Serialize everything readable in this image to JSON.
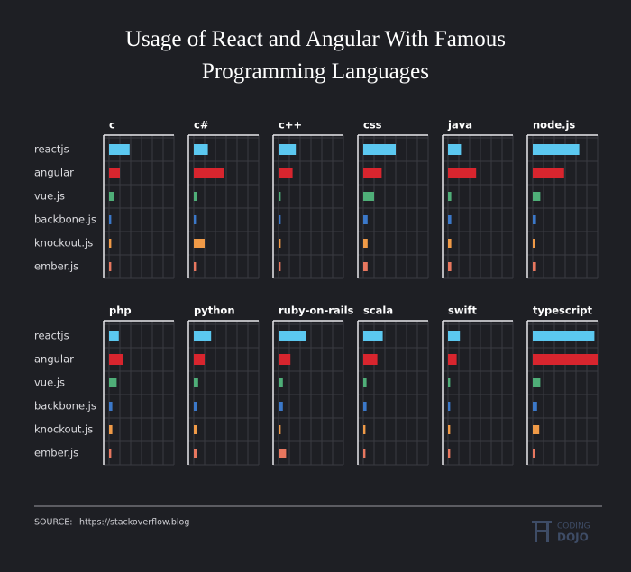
{
  "title": "Usage of React and Angular With Famous Programming Languages",
  "source_label": "SOURCE:",
  "source": "https://stackoverflow.blog",
  "logo": {
    "top": "CODING",
    "bottom": "DOJO"
  },
  "chart_data": {
    "type": "bar",
    "orientation": "horizontal",
    "categories": [
      "reactjs",
      "angular",
      "vue.js",
      "backbone.js",
      "knockout.js",
      "ember.js"
    ],
    "colors": [
      "#5bc8f0",
      "#d8252e",
      "#4fae78",
      "#3b78c9",
      "#f09a47",
      "#e8775f"
    ],
    "xlim": [
      0,
      6
    ],
    "xticks": [
      0,
      1,
      2,
      3,
      4,
      5,
      6
    ],
    "grid": true,
    "panels": [
      {
        "title": "c",
        "values": [
          1.9,
          1.0,
          0.5,
          0.2,
          0.2,
          0.2
        ]
      },
      {
        "title": "c#",
        "values": [
          1.3,
          2.8,
          0.3,
          0.2,
          1.0,
          0.2
        ]
      },
      {
        "title": "c++",
        "values": [
          1.6,
          1.3,
          0.2,
          0.2,
          0.2,
          0.2
        ]
      },
      {
        "title": "css",
        "values": [
          3.0,
          1.7,
          1.0,
          0.4,
          0.4,
          0.4
        ]
      },
      {
        "title": "java",
        "values": [
          1.2,
          2.6,
          0.3,
          0.3,
          0.3,
          0.3
        ]
      },
      {
        "title": "node.js",
        "values": [
          4.3,
          2.9,
          0.7,
          0.3,
          0.2,
          0.3
        ]
      },
      {
        "title": "php",
        "values": [
          0.9,
          1.3,
          0.7,
          0.3,
          0.3,
          0.2
        ]
      },
      {
        "title": "python",
        "values": [
          1.6,
          1.0,
          0.4,
          0.3,
          0.3,
          0.3
        ]
      },
      {
        "title": "ruby-on-rails",
        "values": [
          2.5,
          1.1,
          0.4,
          0.4,
          0.2,
          0.7
        ]
      },
      {
        "title": "scala",
        "values": [
          1.8,
          1.3,
          0.3,
          0.3,
          0.2,
          0.2
        ]
      },
      {
        "title": "swift",
        "values": [
          1.1,
          0.8,
          0.2,
          0.2,
          0.2,
          0.2
        ]
      },
      {
        "title": "typescript",
        "values": [
          5.7,
          6.0,
          0.7,
          0.4,
          0.6,
          0.2
        ]
      }
    ]
  }
}
